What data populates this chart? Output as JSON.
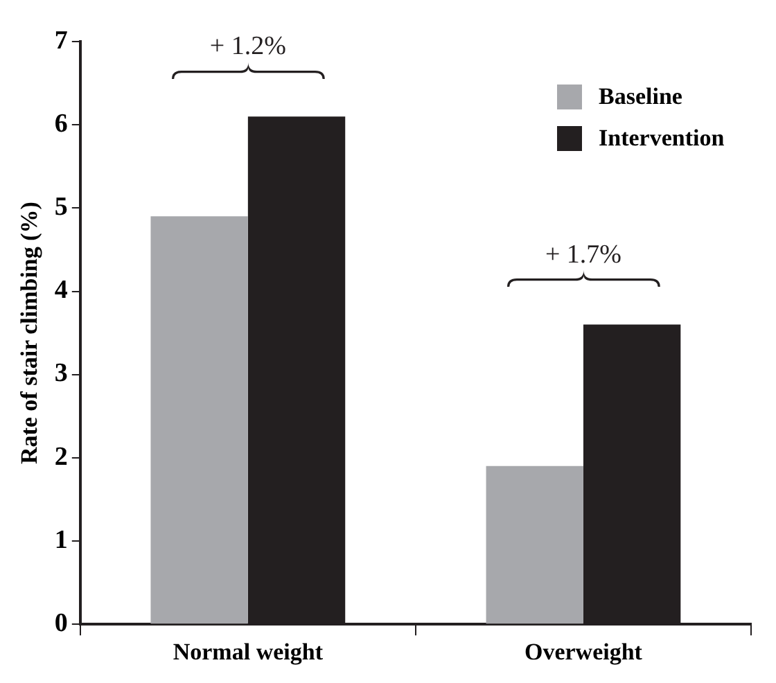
{
  "chart_data": {
    "type": "bar",
    "ylabel": "Rate of stair climbing (%)",
    "categories": [
      "Normal weight",
      "Overweight"
    ],
    "series": [
      {
        "name": "Baseline",
        "color": "#a7a8ac",
        "values": [
          4.9,
          1.9
        ]
      },
      {
        "name": "Intervention",
        "color": "#231f20",
        "values": [
          6.1,
          3.6
        ]
      }
    ],
    "ylim": [
      0,
      7
    ],
    "yticks": [
      0,
      1,
      2,
      3,
      4,
      5,
      6,
      7
    ],
    "grid": false,
    "legend": "top right",
    "annotations": [
      "+ 1.2%",
      "+ 1.7%"
    ]
  }
}
